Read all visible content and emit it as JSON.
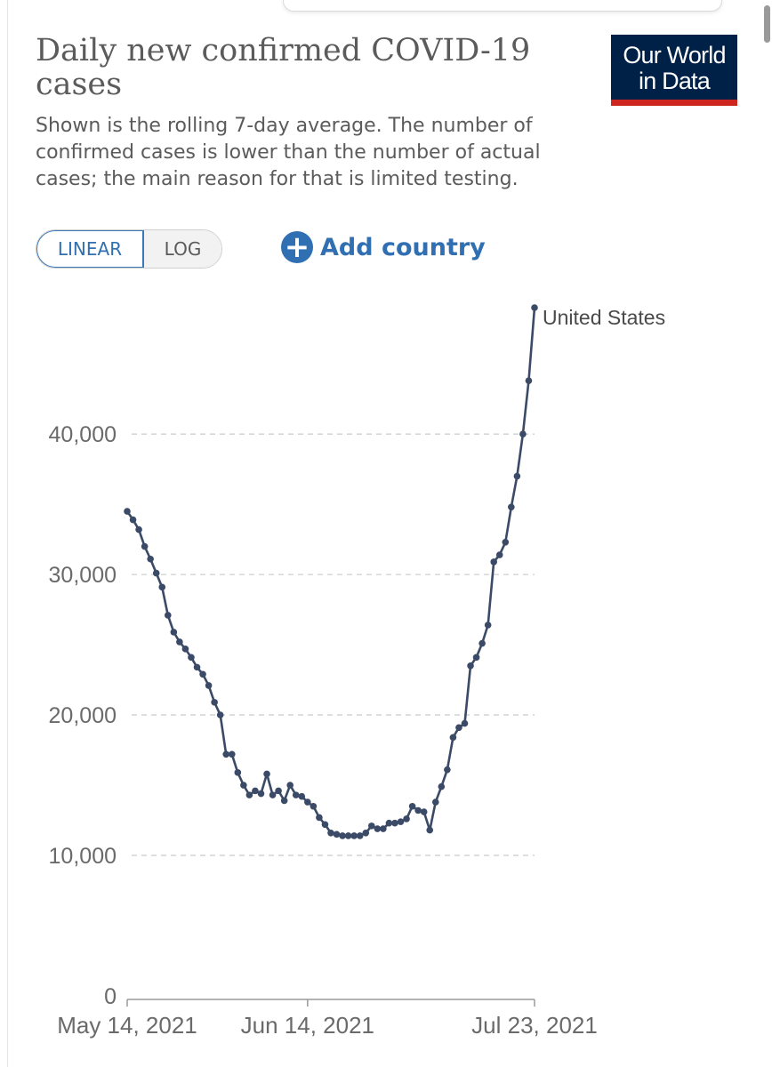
{
  "header": {
    "title": "Daily new confirmed COVID-19 cases",
    "subtitle": "Shown is the rolling 7-day average. The number of confirmed cases is lower than the number of actual cases; the main reason for that is limited testing."
  },
  "logo": {
    "line1": "Our World",
    "line2": "in Data"
  },
  "controls": {
    "linear_label": "LINEAR",
    "log_label": "LOG",
    "add_country_label": "Add country",
    "add_icon": "plus-circle-icon"
  },
  "colors": {
    "line": "#3b4a66",
    "accent": "#2f6fb2",
    "logo_bg": "#002147",
    "logo_bar": "#ce261e"
  },
  "chart_data": {
    "type": "line",
    "title": "Daily new confirmed COVID-19 cases",
    "ylim": [
      0,
      49000
    ],
    "y_ticks": [
      {
        "value": 0,
        "label": "0"
      },
      {
        "value": 10000,
        "label": "10,000"
      },
      {
        "value": 20000,
        "label": "20,000"
      },
      {
        "value": 30000,
        "label": "30,000"
      },
      {
        "value": 40000,
        "label": "40,000"
      }
    ],
    "x_ticks": [
      {
        "date": "2021-05-14",
        "label": "May 14, 2021"
      },
      {
        "date": "2021-06-14",
        "label": "Jun 14, 2021"
      },
      {
        "date": "2021-07-23",
        "label": "Jul 23, 2021"
      }
    ],
    "grid": "horizontal dashed",
    "series": [
      {
        "name": "United States",
        "x": [
          "2021-05-14",
          "2021-05-15",
          "2021-05-16",
          "2021-05-17",
          "2021-05-18",
          "2021-05-19",
          "2021-05-20",
          "2021-05-21",
          "2021-05-22",
          "2021-05-23",
          "2021-05-24",
          "2021-05-25",
          "2021-05-26",
          "2021-05-27",
          "2021-05-28",
          "2021-05-29",
          "2021-05-30",
          "2021-05-31",
          "2021-06-01",
          "2021-06-02",
          "2021-06-03",
          "2021-06-04",
          "2021-06-05",
          "2021-06-06",
          "2021-06-07",
          "2021-06-08",
          "2021-06-09",
          "2021-06-10",
          "2021-06-11",
          "2021-06-12",
          "2021-06-13",
          "2021-06-14",
          "2021-06-15",
          "2021-06-16",
          "2021-06-17",
          "2021-06-18",
          "2021-06-19",
          "2021-06-20",
          "2021-06-21",
          "2021-06-22",
          "2021-06-23",
          "2021-06-24",
          "2021-06-25",
          "2021-06-26",
          "2021-06-27",
          "2021-06-28",
          "2021-06-29",
          "2021-06-30",
          "2021-07-01",
          "2021-07-02",
          "2021-07-03",
          "2021-07-04",
          "2021-07-05",
          "2021-07-06",
          "2021-07-07",
          "2021-07-08",
          "2021-07-09",
          "2021-07-10",
          "2021-07-11",
          "2021-07-12",
          "2021-07-13",
          "2021-07-14",
          "2021-07-15",
          "2021-07-16",
          "2021-07-17",
          "2021-07-18",
          "2021-07-19",
          "2021-07-20",
          "2021-07-21",
          "2021-07-22",
          "2021-07-23"
        ],
        "y": [
          34500,
          33900,
          33200,
          32000,
          31100,
          30100,
          29100,
          27100,
          25900,
          25200,
          24700,
          24100,
          23400,
          22900,
          22100,
          20900,
          20000,
          17200,
          17200,
          15900,
          15000,
          14300,
          14600,
          14400,
          15800,
          14300,
          14600,
          13900,
          15000,
          14300,
          14200,
          13800,
          13500,
          12700,
          12200,
          11600,
          11500,
          11400,
          11400,
          11400,
          11400,
          11600,
          12100,
          11900,
          11900,
          12300,
          12300,
          12400,
          12600,
          13500,
          13200,
          13100,
          11800,
          13800,
          14900,
          16100,
          18400,
          19100,
          19400,
          23500,
          24100,
          25100,
          26400,
          30900,
          31400,
          32300,
          34800,
          37000,
          40000,
          43800,
          49000
        ]
      }
    ]
  }
}
